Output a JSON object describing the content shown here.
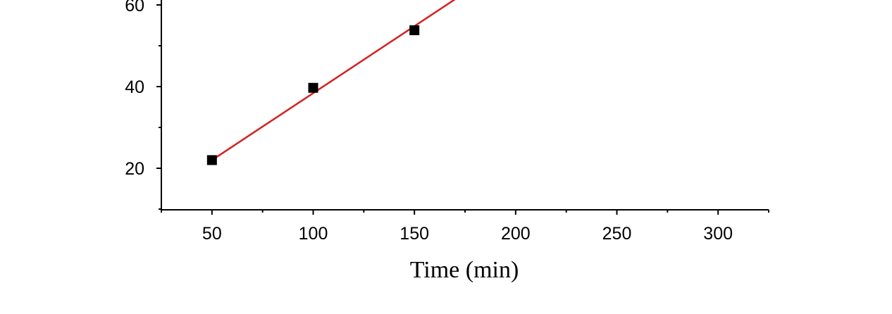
{
  "chart_data": {
    "type": "scatter",
    "title": "",
    "xlabel": "Time (min)",
    "ylabel": "",
    "xlim": [
      25,
      325
    ],
    "ylim": [
      10,
      60
    ],
    "x_ticks": [
      50,
      100,
      150,
      200,
      250,
      300
    ],
    "y_ticks": [
      20,
      40,
      60
    ],
    "grid": false,
    "legend": "none",
    "points": [
      {
        "x": 50,
        "y": 22
      },
      {
        "x": 100,
        "y": 39.7
      },
      {
        "x": 150,
        "y": 53.8
      }
    ],
    "fit_line": {
      "x": [
        50,
        175
      ],
      "y": [
        22,
        63
      ],
      "color": "#d42020"
    },
    "marker_color": "#000000",
    "axis_color": "#000000"
  }
}
